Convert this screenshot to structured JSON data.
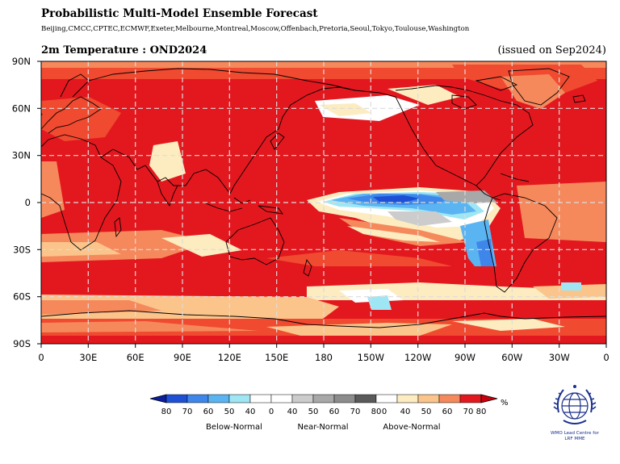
{
  "header": {
    "title": "Probabilistic Multi-Model Ensemble Forecast",
    "models": "Beijing,CMCC,CPTEC,ECMWF,Exeter,Melbourne,Montreal,Moscow,Offenbach,Pretoria,Seoul,Tokyo,Toulouse,Washington",
    "subtitle": "2m Temperature : OND2024",
    "issued": "(issued on Sep2024)"
  },
  "map": {
    "lat_labels": [
      "90N",
      "60N",
      "30N",
      "0",
      "30S",
      "60S",
      "90S"
    ],
    "lon_labels": [
      "0",
      "30E",
      "60E",
      "90E",
      "120E",
      "150E",
      "180",
      "150W",
      "120W",
      "90W",
      "60W",
      "30W",
      "0"
    ],
    "grid": "dashed",
    "dominant_category": "Above-Normal",
    "colors": {
      "above_80": "#e3181e",
      "above_70": "#f04a30",
      "above_60": "#f6895c",
      "above_50": "#fbc48a",
      "above_40": "#fcecc0",
      "neutral": "#ffffff",
      "near_50": "#cccccc",
      "near_60": "#a8a8a8",
      "near_70": "#8c8c8c",
      "near_80": "#5a5a5a",
      "below_50": "#9ee6f4",
      "below_60": "#5bb4f2",
      "below_70": "#3f86ea",
      "below_80": "#1e50d6",
      "coast": "#000000"
    }
  },
  "legend": {
    "tick_labels": [
      "80",
      "70",
      "60",
      "50",
      "40",
      "0",
      "40",
      "50",
      "60",
      "70",
      "80",
      "0",
      "40",
      "50",
      "60",
      "70",
      "80"
    ],
    "unit": "%",
    "categories": [
      "Below-Normal",
      "Near-Normal",
      "Above-Normal"
    ],
    "swatches": [
      "#1e50d6",
      "#3f86ea",
      "#5bb4f2",
      "#9ee6f4",
      "#ffffff",
      "#ffffff",
      "#cccccc",
      "#a8a8a8",
      "#8c8c8c",
      "#5a5a5a",
      "#ffffff",
      "#fcecc0",
      "#fbc48a",
      "#f6895c",
      "#e3181e"
    ]
  },
  "logo": {
    "text_line1": "WMO Lead Centre for",
    "text_line2": "LRF MME"
  }
}
